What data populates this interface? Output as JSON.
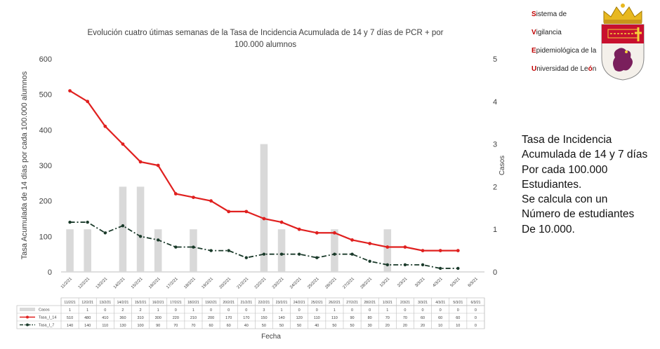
{
  "logo": {
    "lines": [
      {
        "cap": "S",
        "rest": "istema de"
      },
      {
        "cap": "V",
        "rest": "igilancia"
      },
      {
        "cap": "E",
        "rest": "pidemiológica de la"
      },
      {
        "cap": "U",
        "rest": "niversidad de Le",
        "tail_cap": "ó",
        "tail": "n"
      }
    ],
    "crest_icon": "leon-coat-of-arms-icon"
  },
  "description": [
    "Tasa de Incidencia",
    "Acumulada de 14 y 7 días",
    "Por cada 100.000",
    "Estudiantes.",
    "Se calcula con un",
    "Número de estudiantes",
    "De 10.000."
  ],
  "chart_data": {
    "type": "line",
    "title_lines": [
      "Evolución cuatro útimas semanas de la Tasa de Incidencia Acumulada de 14 y 7 días de PCR + por",
      "100.000 alumnos"
    ],
    "xlabel": "Fecha",
    "ylabel": "Tasa Acumulada de 14 días por cada 100.000 alumnos",
    "y2label": "Casos",
    "ylim": [
      0,
      600
    ],
    "yticks": [
      0,
      100,
      200,
      300,
      400,
      500,
      600
    ],
    "y2lim": [
      0,
      5
    ],
    "y2ticks": [
      0,
      1,
      2,
      3,
      4,
      5
    ],
    "categories": [
      "11/2/21",
      "12/2/21",
      "13/2/21",
      "14/2/21",
      "15/2/21",
      "16/2/21",
      "17/2/21",
      "18/2/21",
      "19/2/21",
      "20/2/21",
      "21/2/21",
      "22/2/21",
      "23/2/21",
      "24/2/21",
      "25/2/21",
      "26/2/21",
      "27/2/21",
      "28/2/21",
      "1/3/21",
      "2/3/21",
      "3/3/21",
      "4/3/21",
      "5/3/21",
      "6/3/21"
    ],
    "series": [
      {
        "name": "Casos",
        "kind": "bar",
        "axis": "right",
        "color": "#d9d9d9",
        "values": [
          1,
          1,
          0,
          2,
          2,
          1,
          0,
          1,
          0,
          0,
          0,
          3,
          1,
          0,
          0,
          1,
          0,
          0,
          1,
          0,
          0,
          0,
          0,
          0
        ]
      },
      {
        "name": "Tasa_I_14",
        "kind": "line",
        "axis": "left",
        "color": "#e0201f",
        "values": [
          510,
          480,
          410,
          360,
          310,
          300,
          220,
          210,
          200,
          170,
          170,
          150,
          140,
          120,
          110,
          110,
          90,
          80,
          70,
          70,
          60,
          60,
          60,
          null
        ]
      },
      {
        "name": "Tasa_I_7",
        "kind": "dashdot",
        "axis": "left",
        "color": "#1a3a2a",
        "values": [
          140,
          140,
          110,
          130,
          100,
          90,
          70,
          70,
          60,
          60,
          40,
          50,
          50,
          50,
          40,
          50,
          50,
          30,
          20,
          20,
          20,
          10,
          10,
          null
        ]
      }
    ],
    "table_rows": [
      [
        "1",
        "1",
        "0",
        "2",
        "2",
        "1",
        "0",
        "1",
        "0",
        "0",
        "0",
        "3",
        "1",
        "0",
        "0",
        "1",
        "0",
        "0",
        "1",
        "0",
        "0",
        "0",
        "0",
        "0"
      ],
      [
        "510",
        "480",
        "410",
        "360",
        "310",
        "300",
        "220",
        "210",
        "200",
        "170",
        "170",
        "150",
        "140",
        "120",
        "110",
        "110",
        "90",
        "80",
        "70",
        "70",
        "60",
        "60",
        "60",
        "0"
      ],
      [
        "140",
        "140",
        "110",
        "130",
        "100",
        "90",
        "70",
        "70",
        "60",
        "60",
        "40",
        "50",
        "50",
        "50",
        "40",
        "50",
        "50",
        "30",
        "20",
        "20",
        "20",
        "10",
        "10",
        "0"
      ]
    ],
    "grid": false,
    "legend": "data-table"
  }
}
